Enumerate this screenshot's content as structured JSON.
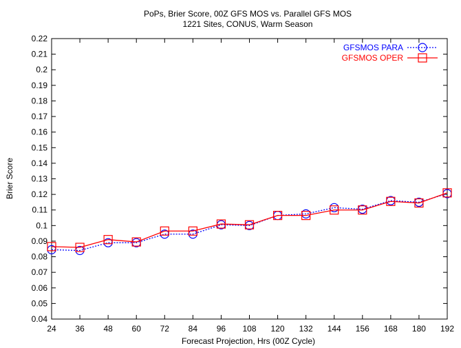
{
  "chart_data": {
    "type": "line",
    "title": "PoPs, Brier Score, 00Z GFS MOS vs. Parallel GFS MOS",
    "subtitle": "1221 Sites, CONUS, Warm Season",
    "xlabel": "Forecast Projection, Hrs (00Z Cycle)",
    "ylabel": "Brier Score",
    "x": [
      24,
      36,
      48,
      60,
      72,
      84,
      96,
      108,
      120,
      132,
      144,
      156,
      168,
      180,
      192
    ],
    "x_ticks": [
      "24",
      "36",
      "48",
      "60",
      "72",
      "84",
      "96",
      "108",
      "120",
      "132",
      "144",
      "156",
      "168",
      "180",
      "192"
    ],
    "ylim": [
      0.04,
      0.22
    ],
    "y_ticks": [
      "0.04",
      "0.05",
      "0.06",
      "0.07",
      "0.08",
      "0.09",
      "0.1",
      "0.11",
      "0.12",
      "0.13",
      "0.14",
      "0.15",
      "0.16",
      "0.17",
      "0.18",
      "0.19",
      "0.2",
      "0.21",
      "0.22"
    ],
    "grid": false,
    "legend_position": "top-right",
    "series": [
      {
        "name": "GFSMOS PARA",
        "color": "#0000ff",
        "marker": "circle",
        "line_style": "dotted",
        "values": [
          0.0845,
          0.084,
          0.089,
          0.089,
          0.0945,
          0.0945,
          0.1005,
          0.1,
          0.1065,
          0.1075,
          0.1115,
          0.1105,
          0.116,
          0.115,
          0.1205
        ]
      },
      {
        "name": "GFSMOS OPER",
        "color": "#ff0000",
        "marker": "square",
        "line_style": "solid",
        "values": [
          0.0865,
          0.086,
          0.091,
          0.0895,
          0.0965,
          0.0965,
          0.101,
          0.1005,
          0.1065,
          0.1065,
          0.11,
          0.11,
          0.1155,
          0.1145,
          0.121
        ]
      }
    ]
  }
}
